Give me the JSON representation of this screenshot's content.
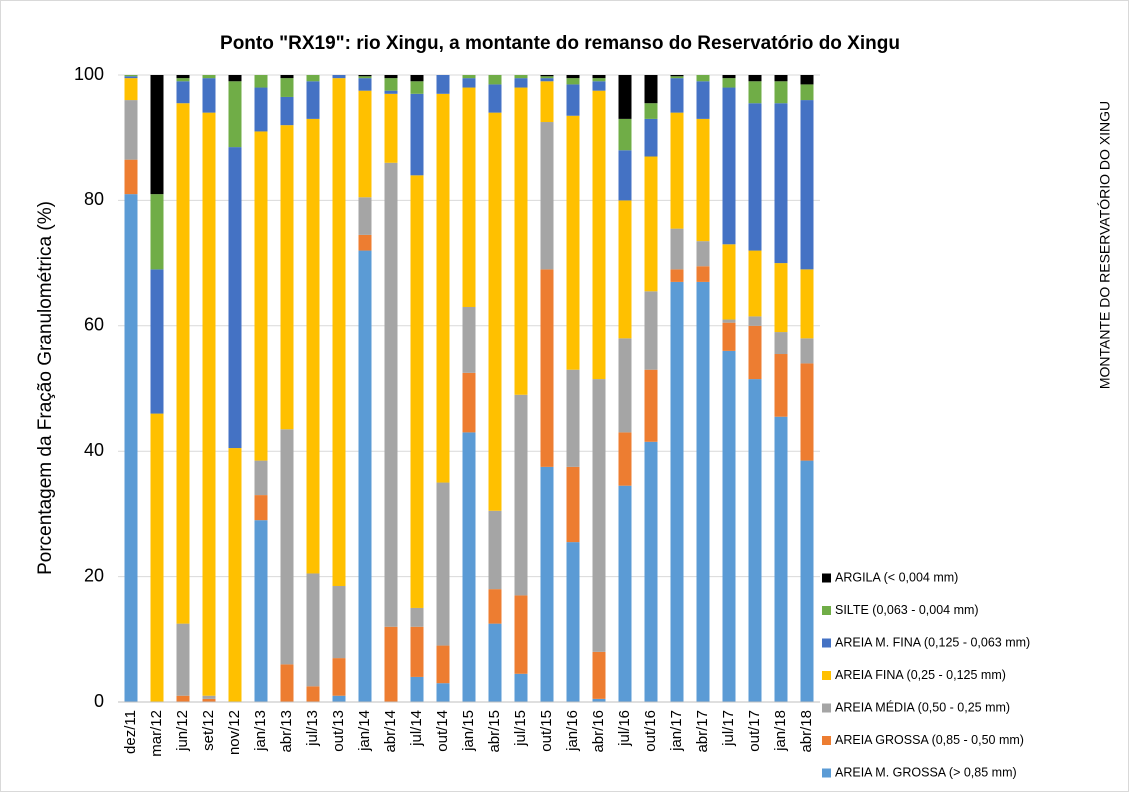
{
  "chart_data": {
    "type": "stacked_bar",
    "title": "Ponto \"RX19\": rio Xingu, a montante do remanso do Reservatório do Xingu",
    "y_label": "Porcentagem da Fração Granulométrica (%)",
    "side_label": "MONTANTE DO RESERVATÓRIO DO XINGU",
    "categories": [
      "dez/11",
      "mar/12",
      "jun/12",
      "set/12",
      "nov/12",
      "jan/13",
      "abr/13",
      "jul/13",
      "out/13",
      "jan/14",
      "abr/14",
      "jul/14",
      "out/14",
      "jan/15",
      "abr/15",
      "jul/15",
      "out/15",
      "jan/16",
      "abr/16",
      "jul/16",
      "out/16",
      "jan/17",
      "abr/17",
      "jul/17",
      "out/17",
      "jan/18",
      "abr/18"
    ],
    "series": [
      {
        "name": "AREIA M. GROSSA (> 0,85 mm)",
        "color": "#5b9bd5",
        "values": [
          81,
          0,
          0,
          0,
          0,
          29,
          0,
          0,
          1,
          72,
          0,
          4,
          3,
          43,
          12.5,
          4.5,
          37.5,
          25.5,
          0.5,
          34.5,
          41.5,
          67,
          67,
          56,
          51.5,
          45.5,
          38.5
        ]
      },
      {
        "name": "AREIA GROSSA (0,85 - 0,50 mm)",
        "color": "#ed7d31",
        "values": [
          5.5,
          0,
          1,
          0.5,
          0,
          4,
          6,
          2.5,
          6,
          2.5,
          12,
          8,
          6,
          9.5,
          5.5,
          12.5,
          31.5,
          12,
          7.5,
          8.5,
          11.5,
          2,
          2.5,
          4.5,
          8.5,
          10,
          15.5
        ]
      },
      {
        "name": "AREIA MÉDIA (0,50 - 0,25 mm)",
        "color": "#a5a5a5",
        "values": [
          9.5,
          0,
          11.5,
          0.5,
          0,
          5.5,
          37.5,
          18,
          11.5,
          6,
          74,
          3,
          26,
          10.5,
          12.5,
          32,
          23.5,
          15.5,
          43.5,
          15,
          12.5,
          6.5,
          4,
          0.5,
          1.5,
          3.5,
          4
        ]
      },
      {
        "name": "AREIA FINA (0,25 - 0,125 mm)",
        "color": "#ffc000",
        "values": [
          3.5,
          46,
          83,
          93,
          40.5,
          52.5,
          48.5,
          72.5,
          81,
          17,
          11,
          69,
          62,
          35,
          63.5,
          49,
          6.5,
          40.5,
          46,
          22,
          21.5,
          18.5,
          19.5,
          12,
          10.5,
          11,
          11
        ]
      },
      {
        "name": "AREIA M. FINA (0,125 - 0,063 mm)",
        "color": "#4472c4",
        "values": [
          0.3,
          23,
          3.5,
          5.5,
          48,
          7,
          4.5,
          6,
          0.5,
          2,
          0.5,
          13,
          3,
          1.5,
          4.5,
          1.5,
          0.5,
          5,
          1.5,
          8,
          6,
          5.5,
          6,
          25,
          23.5,
          25.5,
          27
        ]
      },
      {
        "name": "SILTE (0,063 -  0,004 mm)",
        "color": "#70ad47",
        "values": [
          0.2,
          12,
          0.5,
          0.5,
          10.5,
          2,
          3,
          1,
          0,
          0.3,
          2,
          2,
          0,
          0.5,
          1.5,
          0.5,
          0.3,
          1,
          0.5,
          5,
          2.5,
          0.3,
          1,
          1.5,
          3.5,
          3.5,
          2.5
        ]
      },
      {
        "name": "ARGILA (< 0,004 mm)",
        "color": "#000000",
        "values": [
          0,
          19,
          0.5,
          0,
          1,
          0,
          0.5,
          0,
          0,
          0.2,
          0.5,
          1,
          0,
          0,
          0,
          0,
          0.2,
          0.5,
          0.5,
          7,
          4.5,
          0.2,
          0,
          0.5,
          1,
          1,
          1.5
        ]
      }
    ],
    "ylim": [
      0,
      100
    ],
    "yticks": [
      0,
      20,
      40,
      60,
      80,
      100
    ],
    "grid": true,
    "legend": "right"
  }
}
